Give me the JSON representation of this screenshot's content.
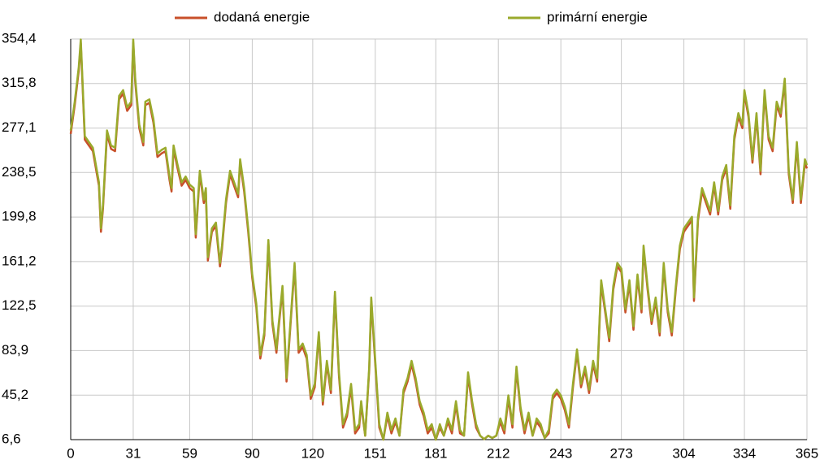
{
  "chart_data": {
    "type": "line",
    "x": [
      0,
      2,
      4,
      5,
      7,
      9,
      11,
      13,
      14,
      15,
      16,
      18,
      20,
      22,
      24,
      26,
      28,
      30,
      31,
      32,
      34,
      36,
      37,
      39,
      41,
      43,
      45,
      47,
      49,
      50,
      51,
      53,
      55,
      57,
      59,
      61,
      62,
      64,
      66,
      67,
      68,
      70,
      72,
      74,
      75,
      77,
      79,
      81,
      83,
      84,
      86,
      88,
      90,
      92,
      94,
      96,
      98,
      100,
      102,
      103,
      105,
      107,
      109,
      111,
      113,
      115,
      117,
      119,
      121,
      123,
      125,
      127,
      129,
      131,
      133,
      135,
      137,
      139,
      141,
      143,
      144,
      146,
      148,
      149,
      151,
      153,
      155,
      157,
      159,
      161,
      163,
      165,
      167,
      169,
      171,
      173,
      175,
      177,
      179,
      181,
      183,
      185,
      187,
      189,
      191,
      193,
      195,
      197,
      199,
      201,
      203,
      205,
      207,
      209,
      211,
      213,
      215,
      217,
      219,
      221,
      223,
      225,
      227,
      229,
      231,
      233,
      235,
      237,
      239,
      241,
      243,
      245,
      247,
      249,
      251,
      253,
      255,
      257,
      259,
      261,
      263,
      265,
      267,
      269,
      271,
      273,
      275,
      277,
      279,
      281,
      283,
      284,
      286,
      288,
      290,
      292,
      294,
      296,
      298,
      300,
      302,
      304,
      306,
      308,
      309,
      311,
      313,
      315,
      317,
      319,
      321,
      323,
      325,
      327,
      329,
      331,
      333,
      334,
      336,
      338,
      340,
      342,
      344,
      346,
      348,
      350,
      352,
      354,
      356,
      358,
      360,
      362,
      364,
      365
    ],
    "series": [
      {
        "name": "dodaná energie",
        "color": "#c8502a",
        "values": [
          272,
          297,
          327,
          351,
          267,
          262,
          257,
          237,
          227,
          187,
          207,
          272,
          259,
          257,
          302,
          307,
          292,
          297,
          351,
          317,
          277,
          262,
          297,
          299,
          282,
          252,
          255,
          257,
          232,
          222,
          259,
          242,
          227,
          232,
          225,
          222,
          182,
          237,
          212,
          222,
          162,
          187,
          192,
          157,
          172,
          212,
          237,
          227,
          217,
          247,
          222,
          187,
          147,
          122,
          77,
          97,
          177,
          107,
          82,
          102,
          137,
          57,
          107,
          157,
          82,
          87,
          77,
          42,
          52,
          97,
          37,
          72,
          47,
          132,
          62,
          17,
          27,
          52,
          12,
          17,
          37,
          10,
          67,
          127,
          72,
          17,
          6.6,
          27,
          12,
          22,
          10,
          47,
          57,
          72,
          57,
          37,
          27,
          12,
          17,
          6.6,
          17,
          10,
          22,
          12,
          37,
          12,
          10,
          62,
          37,
          17,
          10,
          7,
          10,
          8,
          10,
          22,
          12,
          42,
          17,
          67,
          32,
          12,
          27,
          10,
          22,
          17,
          8,
          12,
          42,
          47,
          42,
          32,
          17,
          52,
          82,
          52,
          67,
          47,
          72,
          57,
          142,
          117,
          92,
          137,
          157,
          152,
          117,
          142,
          102,
          147,
          117,
          172,
          137,
          107,
          127,
          97,
          157,
          117,
          97,
          137,
          172,
          187,
          192,
          197,
          127,
          197,
          222,
          212,
          202,
          227,
          202,
          232,
          242,
          207,
          267,
          287,
          277,
          307,
          287,
          247,
          287,
          237,
          307,
          267,
          257,
          297,
          287,
          317,
          237,
          212,
          262,
          212,
          247,
          242
        ]
      },
      {
        "name": "primární energie",
        "color": "#9aaa2c",
        "values": [
          275,
          300,
          330,
          354,
          270,
          265,
          260,
          240,
          230,
          190,
          210,
          275,
          262,
          260,
          305,
          310,
          295,
          300,
          354,
          320,
          280,
          265,
          300,
          302,
          285,
          255,
          258,
          260,
          235,
          225,
          262,
          245,
          230,
          235,
          228,
          225,
          185,
          240,
          215,
          225,
          165,
          190,
          195,
          160,
          175,
          215,
          240,
          230,
          220,
          250,
          225,
          190,
          150,
          125,
          80,
          100,
          180,
          110,
          85,
          105,
          140,
          60,
          110,
          160,
          85,
          90,
          80,
          45,
          55,
          100,
          40,
          75,
          50,
          135,
          65,
          20,
          30,
          55,
          15,
          20,
          40,
          10,
          70,
          130,
          75,
          20,
          6.6,
          30,
          15,
          25,
          10,
          50,
          60,
          75,
          60,
          40,
          30,
          15,
          20,
          6.6,
          20,
          10,
          25,
          15,
          40,
          15,
          10,
          65,
          40,
          20,
          10,
          7,
          10,
          8,
          10,
          25,
          15,
          45,
          20,
          70,
          35,
          15,
          30,
          10,
          25,
          20,
          8,
          15,
          45,
          50,
          45,
          35,
          20,
          55,
          85,
          55,
          70,
          50,
          75,
          60,
          145,
          120,
          95,
          140,
          160,
          155,
          120,
          145,
          105,
          150,
          120,
          175,
          140,
          110,
          130,
          100,
          160,
          120,
          100,
          140,
          175,
          190,
          195,
          200,
          130,
          200,
          225,
          215,
          205,
          230,
          205,
          235,
          245,
          210,
          270,
          290,
          280,
          310,
          290,
          250,
          290,
          240,
          310,
          270,
          260,
          300,
          290,
          320,
          240,
          215,
          265,
          215,
          250,
          245
        ]
      }
    ],
    "xlim": [
      0,
      365
    ],
    "xticks": [
      0,
      31,
      59,
      90,
      120,
      151,
      181,
      212,
      243,
      273,
      304,
      334,
      365
    ],
    "ylim": [
      6.6,
      354.4
    ],
    "yticks": [
      {
        "value": 6.6,
        "label": "6,6"
      },
      {
        "value": 45.2,
        "label": "45,2"
      },
      {
        "value": 83.9,
        "label": "83,9"
      },
      {
        "value": 122.5,
        "label": "122,5"
      },
      {
        "value": 161.2,
        "label": "161,2"
      },
      {
        "value": 199.8,
        "label": "199,8"
      },
      {
        "value": 238.5,
        "label": "238,5"
      },
      {
        "value": 277.1,
        "label": "277,1"
      },
      {
        "value": 315.8,
        "label": "315,8"
      },
      {
        "value": 354.4,
        "label": "354,4"
      }
    ],
    "grid": true,
    "legend": "top"
  }
}
